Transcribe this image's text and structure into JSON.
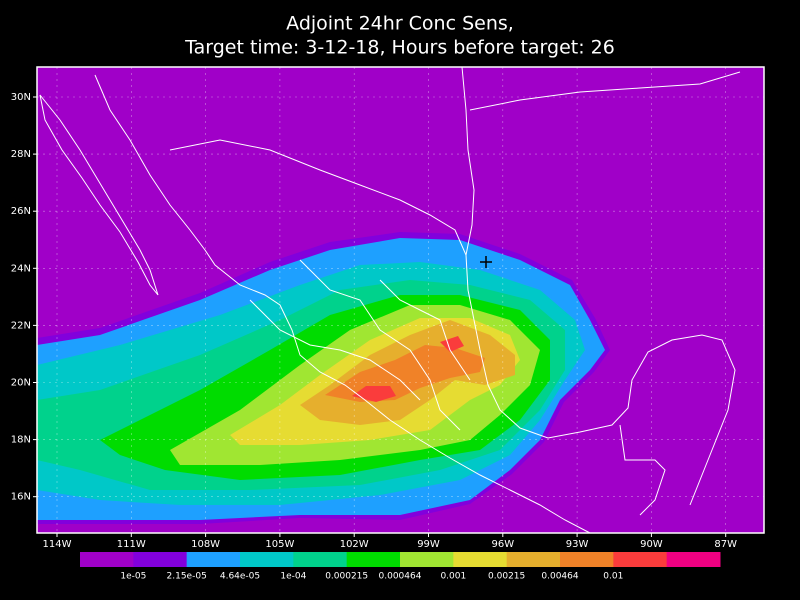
{
  "title": [
    "Adjoint 24hr Conc Sens,",
    "Target time: 3-12-18, Hours before target: 26"
  ],
  "map": {
    "lat_labels": [
      "30N",
      "28N",
      "26N",
      "24N",
      "22N",
      "20N",
      "18N",
      "16N"
    ],
    "lon_labels": [
      "114W",
      "111W",
      "108W",
      "105W",
      "102W",
      "99W",
      "96W",
      "93W",
      "90W",
      "87W"
    ]
  },
  "colorbar": {
    "colors": [
      "#a000c8",
      "#8200dc",
      "#1ea0ff",
      "#00c8c8",
      "#00d28c",
      "#00dc00",
      "#a0e632",
      "#e6dc32",
      "#e6af2d",
      "#f08228",
      "#fa3c3c",
      "#f00082"
    ],
    "labels": [
      "1e-05",
      "2.15e-05",
      "4.64e-05",
      "1e-04",
      "0.000215",
      "0.000464",
      "0.001",
      "0.00215",
      "0.00464",
      "0.01"
    ]
  }
}
